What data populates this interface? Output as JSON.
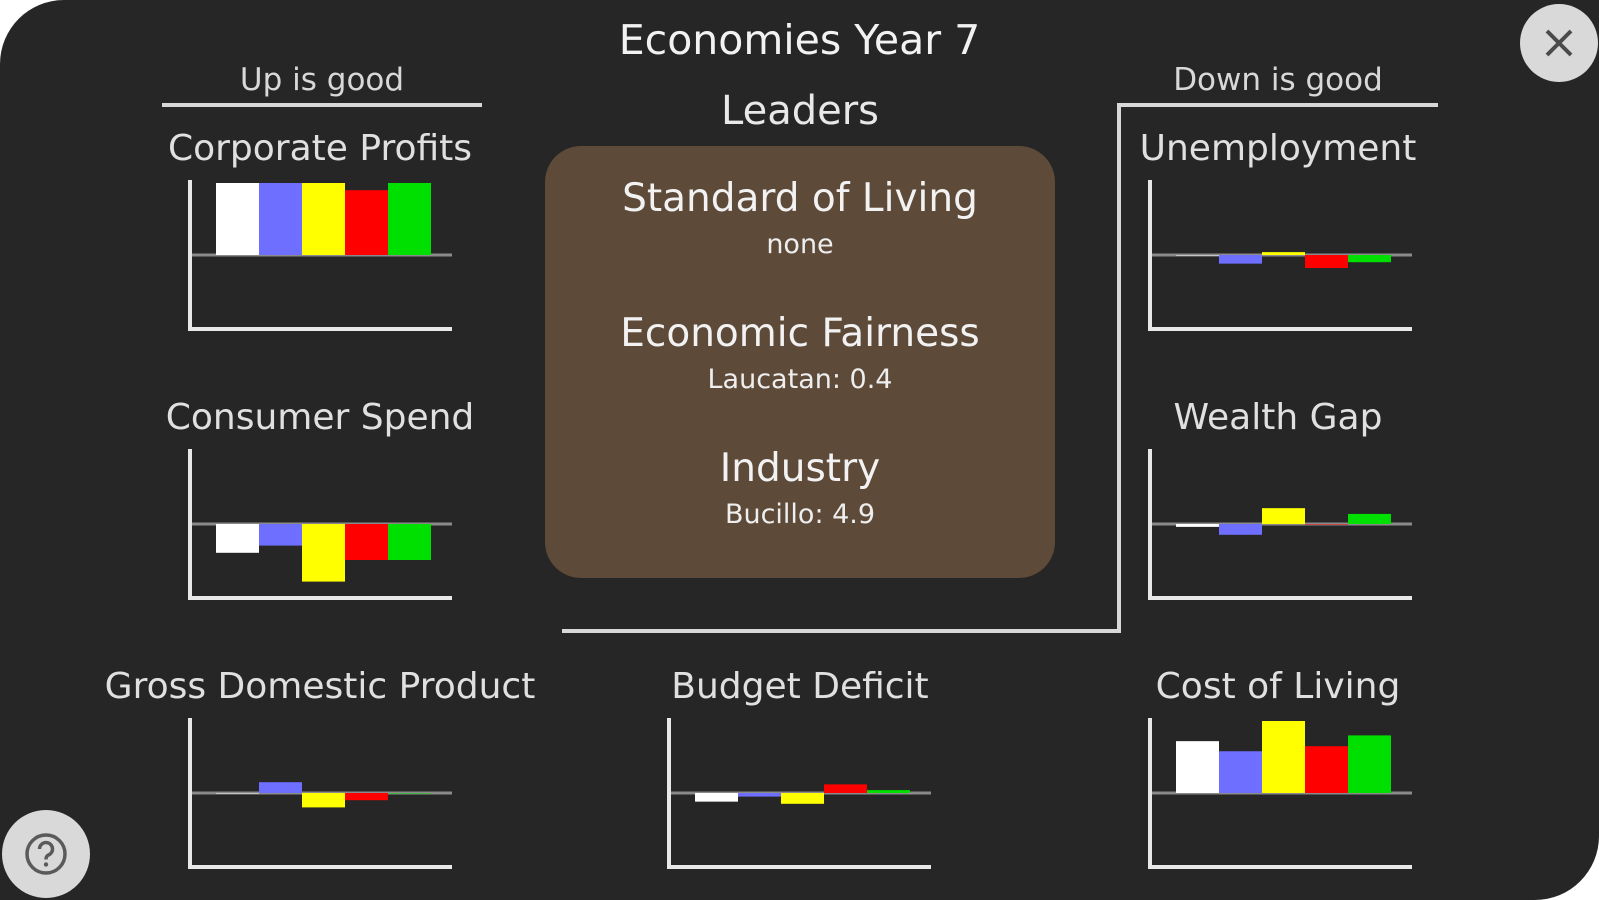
{
  "title": "Economies Year 7",
  "headers": {
    "left": "Up is good",
    "right": "Down is good"
  },
  "leaders": {
    "title": "Leaders",
    "categories": [
      {
        "name": "Standard of Living",
        "value": "none"
      },
      {
        "name": "Economic Fairness",
        "value": "Laucatan: 0.4"
      },
      {
        "name": "Industry",
        "value": "Bucillo: 4.9"
      }
    ]
  },
  "buttons": {
    "close_icon": "close-icon",
    "help_icon": "question-icon"
  },
  "chart_colors": [
    "#ffffff",
    "#6f6fff",
    "#ffff00",
    "#ff0000",
    "#00e000"
  ],
  "chart_data": [
    {
      "type": "bar",
      "title": "Corporate Profits",
      "values": [
        1.0,
        1.0,
        1.0,
        0.9,
        1.0
      ],
      "ylim": [
        -1,
        1
      ]
    },
    {
      "type": "bar",
      "title": "Consumer Spend",
      "values": [
        -0.4,
        -0.3,
        -0.8,
        -0.5,
        -0.5
      ],
      "ylim": [
        -1,
        1
      ]
    },
    {
      "type": "bar",
      "title": "Gross Domestic Product",
      "values": [
        0,
        0.15,
        -0.2,
        -0.1,
        0
      ],
      "ylim": [
        -1,
        1
      ]
    },
    {
      "type": "bar",
      "title": "Budget Deficit",
      "values": [
        -0.12,
        -0.05,
        -0.15,
        0.12,
        0.04
      ],
      "ylim": [
        -1,
        1
      ]
    },
    {
      "type": "bar",
      "title": "Unemployment",
      "values": [
        0,
        -0.12,
        0.04,
        -0.18,
        -0.1
      ],
      "ylim": [
        -1,
        1
      ]
    },
    {
      "type": "bar",
      "title": "Wealth Gap",
      "values": [
        -0.04,
        -0.15,
        0.22,
        0,
        0.14
      ],
      "ylim": [
        -1,
        1
      ]
    },
    {
      "type": "bar",
      "title": "Cost of Living",
      "values": [
        0.72,
        0.58,
        1.0,
        0.65,
        0.8
      ],
      "ylim": [
        -1,
        1
      ]
    }
  ]
}
